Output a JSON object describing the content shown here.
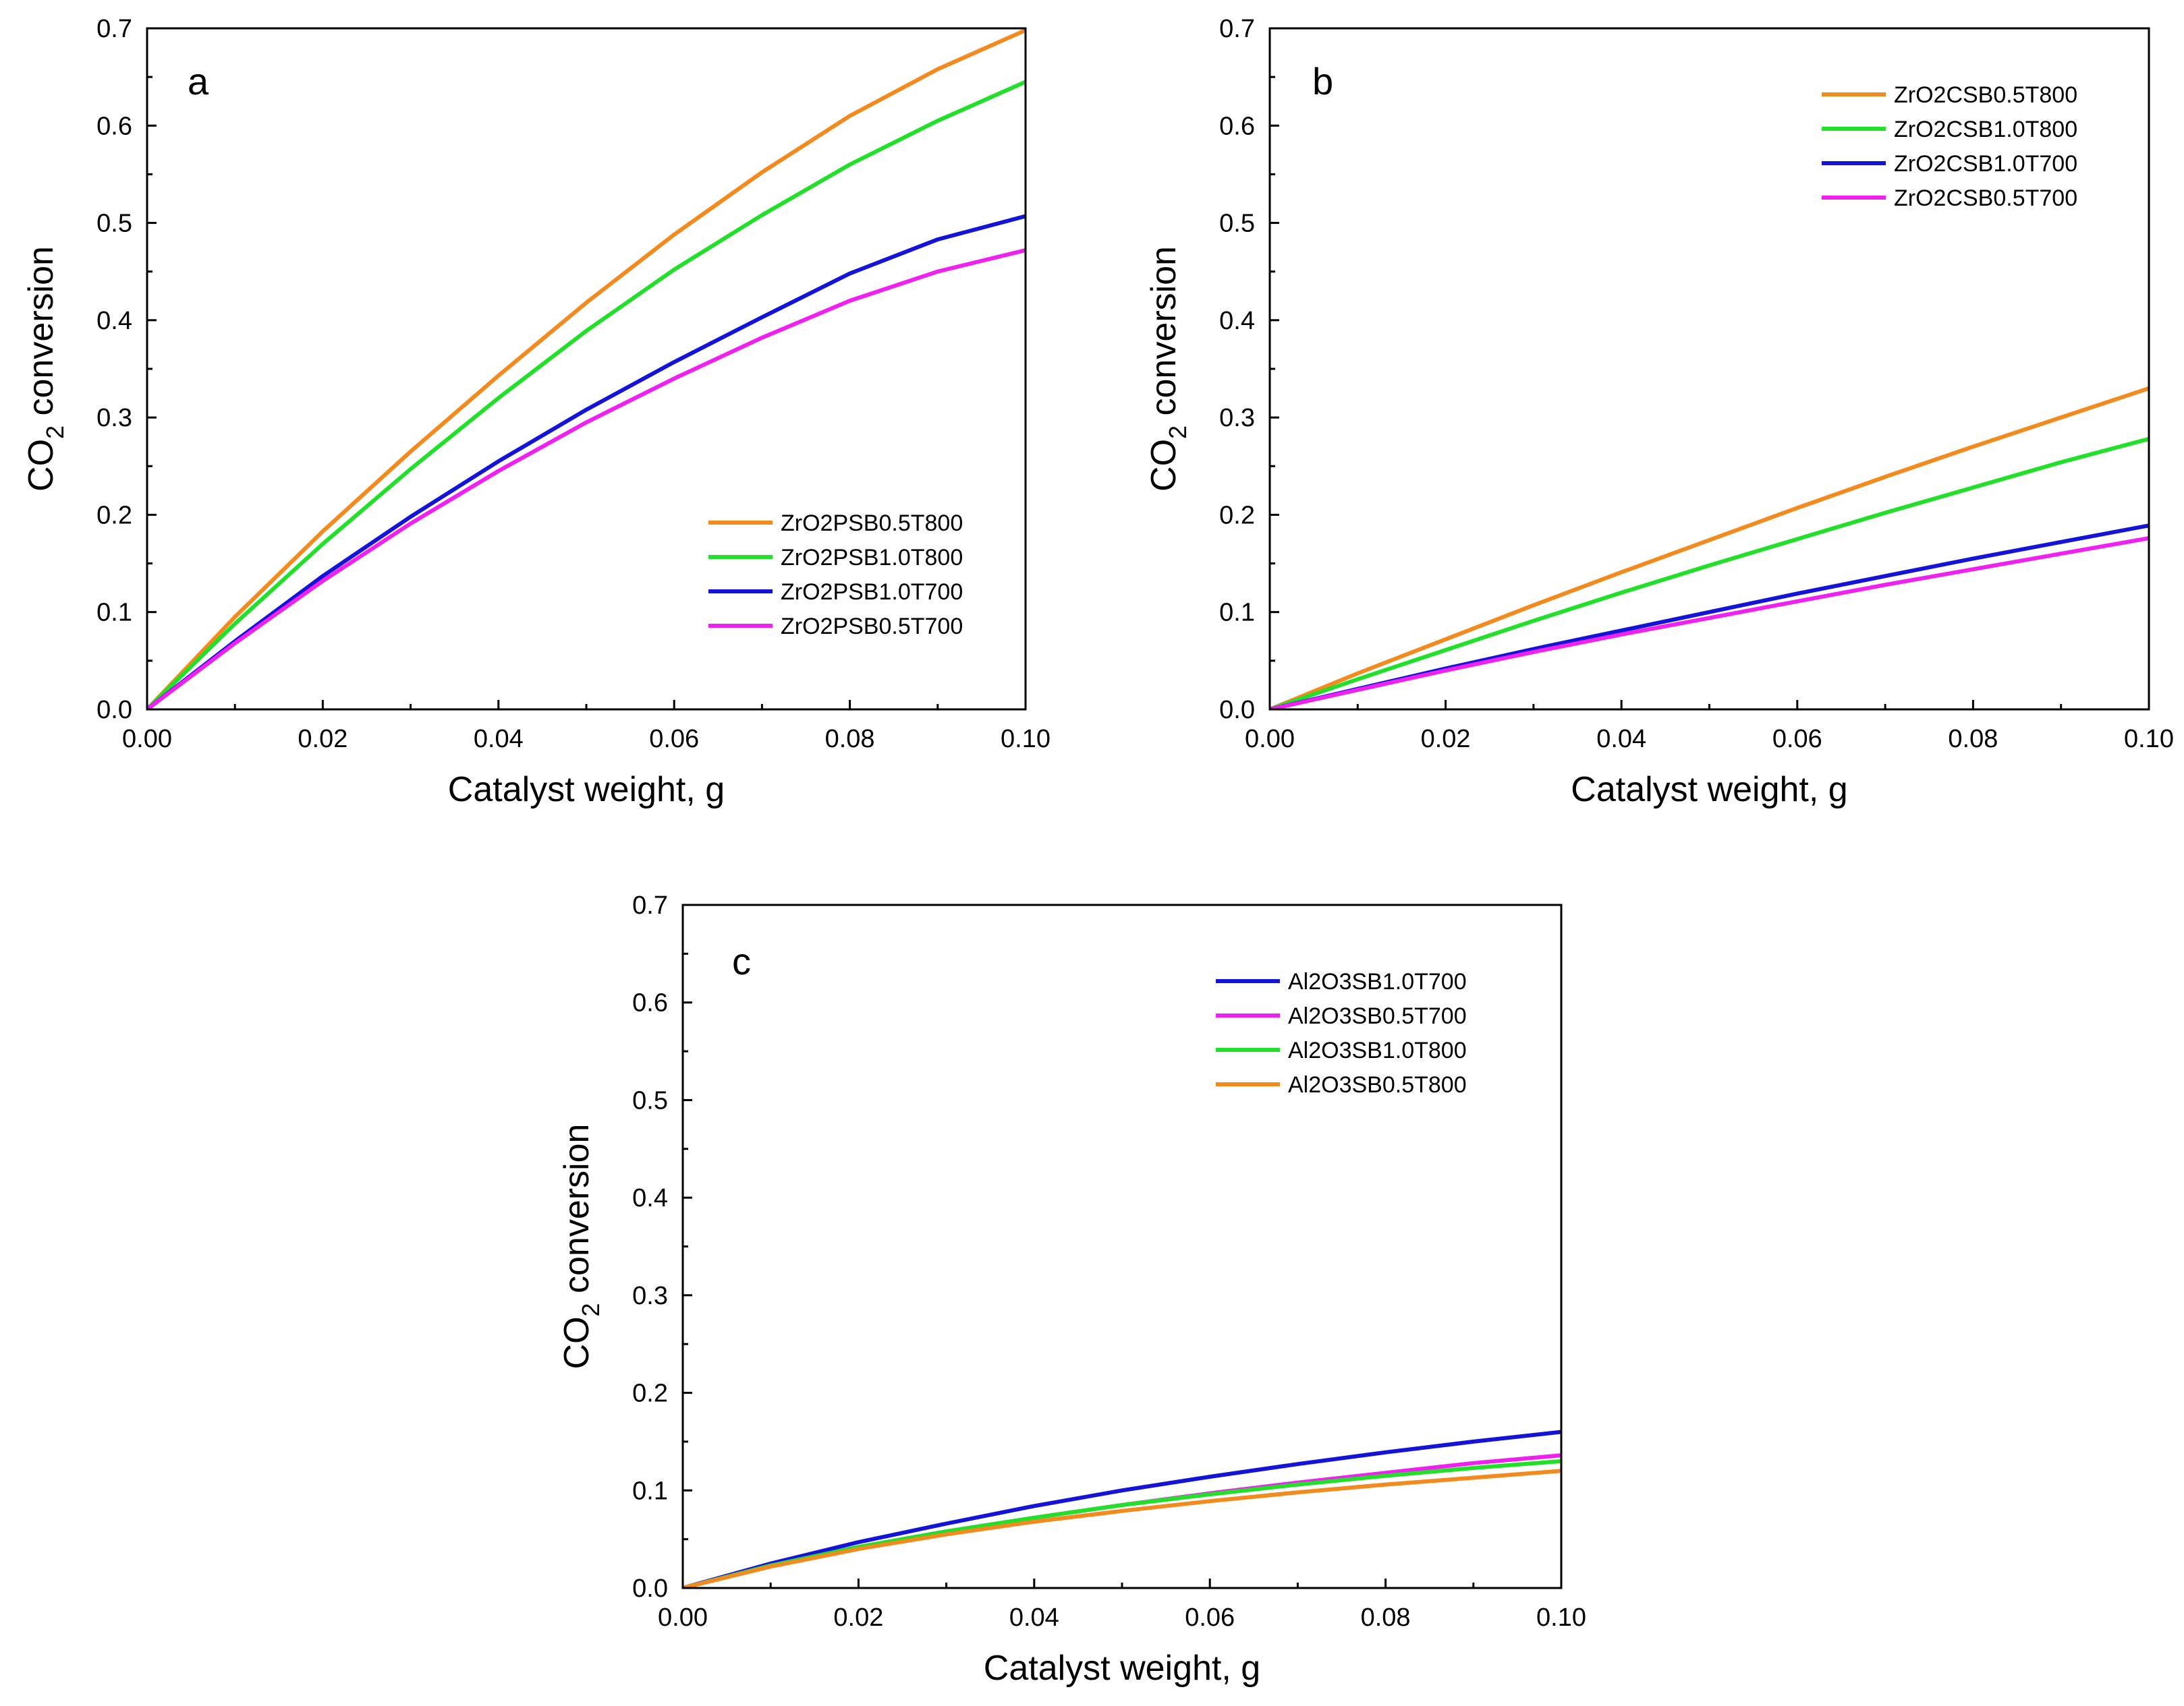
{
  "chart_data": [
    {
      "type": "line",
      "panel": "a",
      "xlabel": "Catalyst weight, g",
      "ylabel_main": "CO",
      "ylabel_sub": "2",
      "ylabel_rest": " conversion",
      "xlim": [
        0,
        0.1
      ],
      "ylim": [
        0,
        0.7
      ],
      "xticks": [
        "0.00",
        "0.02",
        "0.04",
        "0.06",
        "0.08",
        "0.10"
      ],
      "yticks": [
        "0.0",
        "0.1",
        "0.2",
        "0.3",
        "0.4",
        "0.5",
        "0.6",
        "0.7"
      ],
      "legend_position": "bottom-right",
      "grid": false,
      "x": [
        0,
        0.01,
        0.02,
        0.03,
        0.04,
        0.05,
        0.06,
        0.07,
        0.08,
        0.09,
        0.1
      ],
      "series": [
        {
          "name": "ZrO2PSB0.5T800",
          "color": "#f28a1e",
          "values": [
            0,
            0.095,
            0.183,
            0.265,
            0.343,
            0.418,
            0.488,
            0.552,
            0.61,
            0.658,
            0.698
          ]
        },
        {
          "name": "ZrO2PSB1.0T800",
          "color": "#22e02a",
          "values": [
            0,
            0.088,
            0.17,
            0.247,
            0.32,
            0.389,
            0.452,
            0.508,
            0.56,
            0.605,
            0.645
          ]
        },
        {
          "name": "ZrO2PSB1.0T700",
          "color": "#1414d8",
          "values": [
            0,
            0.07,
            0.137,
            0.198,
            0.255,
            0.308,
            0.357,
            0.403,
            0.448,
            0.483,
            0.507
          ]
        },
        {
          "name": "ZrO2PSB0.5T700",
          "color": "#f020f0",
          "values": [
            0,
            0.068,
            0.132,
            0.191,
            0.245,
            0.295,
            0.34,
            0.382,
            0.42,
            0.45,
            0.472
          ]
        }
      ]
    },
    {
      "type": "line",
      "panel": "b",
      "xlabel": "Catalyst weight, g",
      "ylabel_main": "CO",
      "ylabel_sub": "2",
      "ylabel_rest": " conversion",
      "xlim": [
        0,
        0.1
      ],
      "ylim": [
        0,
        0.7
      ],
      "xticks": [
        "0.00",
        "0.02",
        "0.04",
        "0.06",
        "0.08",
        "0.10"
      ],
      "yticks": [
        "0.0",
        "0.1",
        "0.2",
        "0.3",
        "0.4",
        "0.5",
        "0.6",
        "0.7"
      ],
      "legend_position": "top-right",
      "grid": false,
      "x": [
        0,
        0.01,
        0.02,
        0.03,
        0.04,
        0.05,
        0.06,
        0.07,
        0.08,
        0.09,
        0.1
      ],
      "series": [
        {
          "name": "ZrO2CSB0.5T800",
          "color": "#f28a1e",
          "values": [
            0,
            0.037,
            0.072,
            0.107,
            0.141,
            0.174,
            0.207,
            0.239,
            0.27,
            0.3,
            0.33
          ]
        },
        {
          "name": "ZrO2CSB1.0T800",
          "color": "#22e02a",
          "values": [
            0,
            0.031,
            0.061,
            0.091,
            0.12,
            0.148,
            0.175,
            0.202,
            0.228,
            0.254,
            0.278
          ]
        },
        {
          "name": "ZrO2CSB1.0T700",
          "color": "#1414d8",
          "values": [
            0,
            0.021,
            0.042,
            0.062,
            0.081,
            0.1,
            0.119,
            0.137,
            0.155,
            0.172,
            0.189
          ]
        },
        {
          "name": "ZrO2CSB0.5T700",
          "color": "#f020f0",
          "values": [
            0,
            0.02,
            0.04,
            0.059,
            0.077,
            0.094,
            0.111,
            0.128,
            0.144,
            0.16,
            0.176
          ]
        }
      ]
    },
    {
      "type": "line",
      "panel": "c",
      "xlabel": "Catalyst weight, g",
      "ylabel_main": "CO",
      "ylabel_sub": "2",
      "ylabel_rest": " conversion",
      "xlim": [
        0,
        0.1
      ],
      "ylim": [
        0,
        0.7
      ],
      "xticks": [
        "0.00",
        "0.02",
        "0.04",
        "0.06",
        "0.08",
        "0.10"
      ],
      "yticks": [
        "0.0",
        "0.1",
        "0.2",
        "0.3",
        "0.4",
        "0.5",
        "0.6",
        "0.7"
      ],
      "legend_position": "top-right",
      "grid": false,
      "x": [
        0,
        0.01,
        0.02,
        0.03,
        0.04,
        0.05,
        0.06,
        0.07,
        0.08,
        0.09,
        0.1
      ],
      "series": [
        {
          "name": "Al2O3SB1.0T700",
          "color": "#1414d8",
          "values": [
            0,
            0.025,
            0.047,
            0.066,
            0.084,
            0.1,
            0.114,
            0.127,
            0.139,
            0.15,
            0.16
          ]
        },
        {
          "name": "Al2O3SB0.5T700",
          "color": "#f020f0",
          "values": [
            0,
            0.023,
            0.042,
            0.058,
            0.072,
            0.085,
            0.097,
            0.108,
            0.118,
            0.128,
            0.136
          ]
        },
        {
          "name": "Al2O3SB1.0T800",
          "color": "#22e02a",
          "values": [
            0,
            0.023,
            0.042,
            0.058,
            0.072,
            0.085,
            0.096,
            0.106,
            0.115,
            0.123,
            0.13
          ]
        },
        {
          "name": "Al2O3SB0.5T800",
          "color": "#f28a1e",
          "values": [
            0,
            0.022,
            0.04,
            0.055,
            0.068,
            0.079,
            0.089,
            0.098,
            0.106,
            0.113,
            0.12
          ]
        }
      ]
    }
  ]
}
